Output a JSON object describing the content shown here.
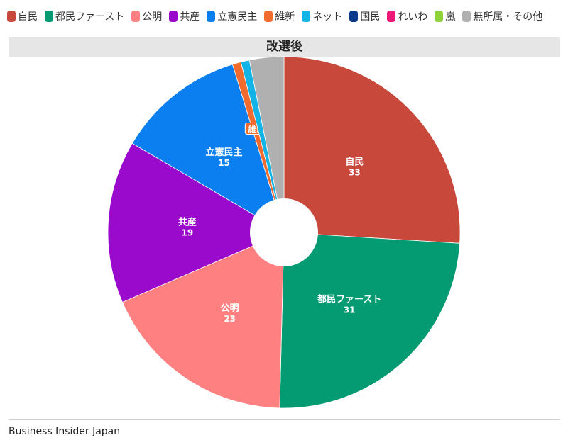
{
  "chart_data": {
    "type": "pie",
    "title": "改選後",
    "categories": [
      "自民",
      "都民ファースト",
      "公明",
      "共産",
      "立憲民主",
      "維新",
      "ネット",
      "国民",
      "れいわ",
      "嵐",
      "無所属・その他"
    ],
    "values": [
      33,
      31,
      23,
      19,
      15,
      1,
      1,
      0,
      0,
      0,
      4
    ],
    "colors": [
      "#c8483b",
      "#049a72",
      "#ff8080",
      "#9a0acd",
      "#0b7ff0",
      "#f26b2e",
      "#12b3e6",
      "#0a3a8c",
      "#f0197a",
      "#8ed13a",
      "#b0b0b0"
    ],
    "donut_hole": true,
    "legend_position": "top"
  },
  "legend": {
    "items": [
      {
        "label": "自民",
        "color": "#c8483b"
      },
      {
        "label": "都民ファースト",
        "color": "#049a72"
      },
      {
        "label": "公明",
        "color": "#ff8080"
      },
      {
        "label": "共産",
        "color": "#9a0acd"
      },
      {
        "label": "立憲民主",
        "color": "#0b7ff0"
      },
      {
        "label": "維新",
        "color": "#f26b2e"
      },
      {
        "label": "ネット",
        "color": "#12b3e6"
      },
      {
        "label": "国民",
        "color": "#0a3a8c"
      },
      {
        "label": "れいわ",
        "color": "#f0197a"
      },
      {
        "label": "嵐",
        "color": "#8ed13a"
      },
      {
        "label": "無所属・その他",
        "color": "#b0b0b0"
      }
    ]
  },
  "footer": {
    "source": "Business Insider Japan"
  }
}
